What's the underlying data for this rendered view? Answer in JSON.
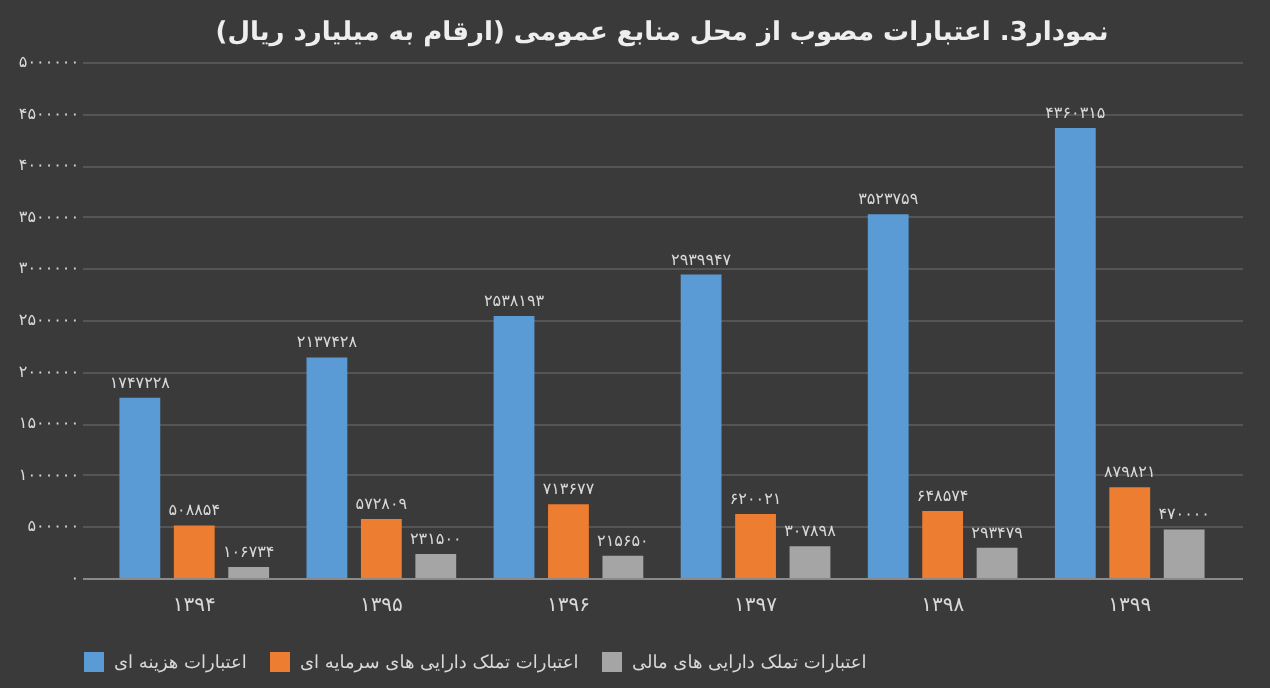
{
  "chart_data": {
    "type": "bar",
    "title": "نمودار3. اعتبارات مصوب از محل منابع عمومی (ارقام به میلیارد ریال)",
    "categories": [
      "۱۳۹۴",
      "۱۳۹۵",
      "۱۳۹۶",
      "۱۳۹۷",
      "۱۳۹۸",
      "۱۳۹۹"
    ],
    "series": [
      {
        "name": "اعتبارات هزینه ای",
        "color": "#5b9bd5",
        "values": [
          1747228,
          2137428,
          2538193,
          2939947,
          3523759,
          4360315
        ],
        "value_labels": [
          "۱۷۴۷۲۲۸",
          "۲۱۳۷۴۲۸",
          "۲۵۳۸۱۹۳",
          "۲۹۳۹۹۴۷",
          "۳۵۲۳۷۵۹",
          "۴۳۶۰۳۱۵"
        ]
      },
      {
        "name": "اعتبارات تملک دارایی های سرمایه ای",
        "color": "#ed7d31",
        "values": [
          508854,
          572809,
          713677,
          620021,
          648574,
          879821
        ],
        "value_labels": [
          "۵۰۸۸۵۴",
          "۵۷۲۸۰۹",
          "۷۱۳۶۷۷",
          "۶۲۰۰۲۱",
          "۶۴۸۵۷۴",
          "۸۷۹۸۲۱"
        ]
      },
      {
        "name": "اعتبارات تملک دارایی های مالی",
        "color": "#a5a5a5",
        "values": [
          106734,
          231500,
          215650,
          307898,
          293479,
          470000
        ],
        "value_labels": [
          "۱۰۶۷۳۴",
          "۲۳۱۵۰۰",
          "۲۱۵۶۵۰",
          "۳۰۷۸۹۸",
          "۲۹۳۴۷۹",
          "۴۷۰۰۰۰"
        ]
      }
    ],
    "ylim": [
      0,
      5000000
    ],
    "yticks": [
      {
        "value": 0,
        "label": "۰"
      },
      {
        "value": 500000,
        "label": "۵۰۰۰۰۰"
      },
      {
        "value": 1000000,
        "label": "۱۰۰۰۰۰۰"
      },
      {
        "value": 1500000,
        "label": "۱۵۰۰۰۰۰"
      },
      {
        "value": 2000000,
        "label": "۲۰۰۰۰۰۰"
      },
      {
        "value": 2500000,
        "label": "۲۵۰۰۰۰۰"
      },
      {
        "value": 3000000,
        "label": "۳۰۰۰۰۰۰"
      },
      {
        "value": 3500000,
        "label": "۳۵۰۰۰۰۰"
      },
      {
        "value": 4000000,
        "label": "۴۰۰۰۰۰۰"
      },
      {
        "value": 4500000,
        "label": "۴۵۰۰۰۰۰"
      },
      {
        "value": 5000000,
        "label": "۵۰۰۰۰۰۰"
      }
    ],
    "grid": "y",
    "legend": "bottom"
  }
}
